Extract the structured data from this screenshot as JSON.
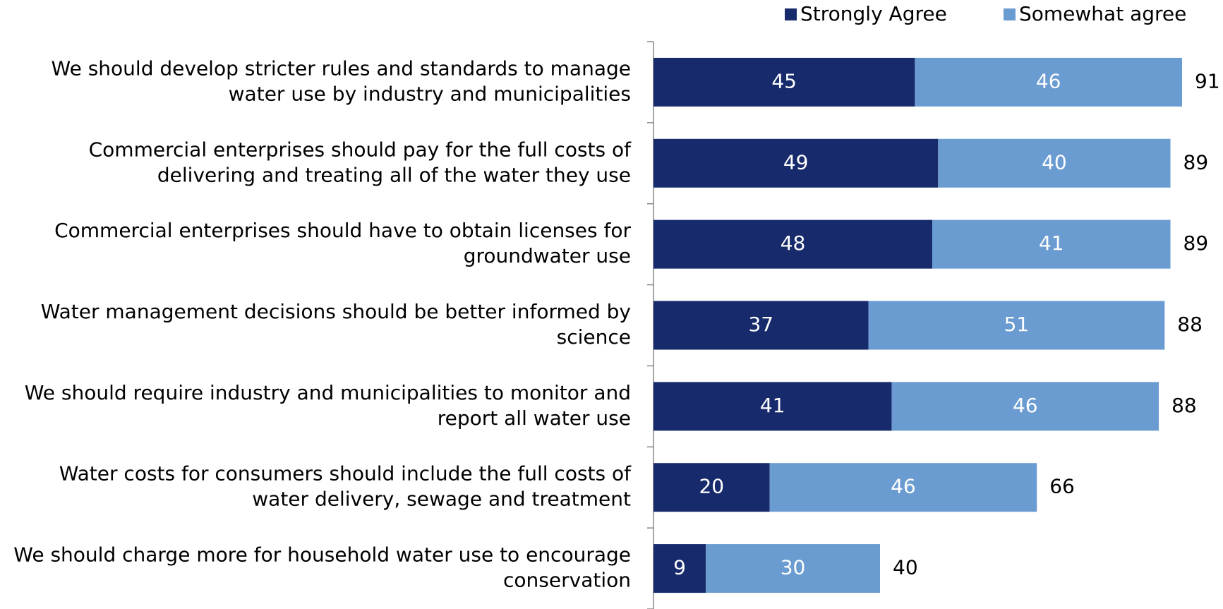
{
  "chart_data": {
    "type": "stacked-bar-horizontal",
    "categories": [
      [
        "We should develop stricter rules and standards to manage",
        "water use by industry and municipalities"
      ],
      [
        "Commercial enterprises should pay for the full costs of",
        "delivering and treating all of the water they use"
      ],
      [
        "Commercial enterprises should have to obtain licenses for",
        "groundwater use"
      ],
      [
        "Water management decisions should be better informed by",
        "science"
      ],
      [
        "We should require industry and municipalities to monitor and",
        "report all water use"
      ],
      [
        "Water costs for consumers should include the full costs of",
        "water delivery, sewage and treatment"
      ],
      [
        "We should charge more for household water use to encourage",
        "conservation"
      ]
    ],
    "series": [
      {
        "name": "Strongly Agree",
        "color": "#172a6b",
        "values": [
          45,
          49,
          48,
          37,
          41,
          20,
          9
        ]
      },
      {
        "name": "Somewhat agree",
        "color": "#6a9bd1",
        "values": [
          46,
          40,
          41,
          51,
          46,
          46,
          30
        ]
      }
    ],
    "totals": [
      91,
      89,
      89,
      88,
      88,
      66,
      40
    ],
    "legend": "top-right"
  }
}
